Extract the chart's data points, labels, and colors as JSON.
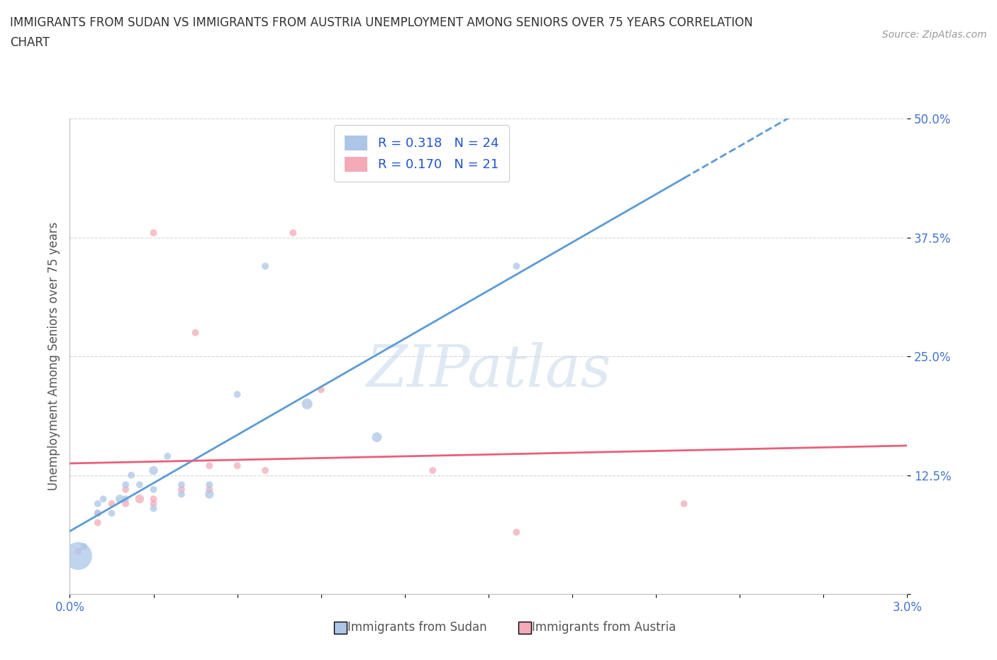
{
  "title_line1": "IMMIGRANTS FROM SUDAN VS IMMIGRANTS FROM AUSTRIA UNEMPLOYMENT AMONG SENIORS OVER 75 YEARS CORRELATION",
  "title_line2": "CHART",
  "source": "Source: ZipAtlas.com",
  "ylabel": "Unemployment Among Seniors over 75 years",
  "xlim": [
    0.0,
    0.03
  ],
  "ylim": [
    0.0,
    0.5
  ],
  "xticks": [
    0.0,
    0.003,
    0.006,
    0.009,
    0.012,
    0.015,
    0.018,
    0.021,
    0.024,
    0.027,
    0.03
  ],
  "xtick_labels_show": [
    "0.0%",
    "3.0%"
  ],
  "yticks": [
    0.0,
    0.125,
    0.25,
    0.375,
    0.5
  ],
  "ytick_labels": [
    "",
    "12.5%",
    "25.0%",
    "37.5%",
    "50.0%"
  ],
  "sudan_color": "#adc6e8",
  "austria_color": "#f5aab8",
  "sudan_line_color": "#5b9bd5",
  "austria_line_color": "#e8607a",
  "watermark_text": "ZIPatlas",
  "sudan_x": [
    0.0003,
    0.0005,
    0.001,
    0.001,
    0.0012,
    0.0015,
    0.0018,
    0.002,
    0.002,
    0.0022,
    0.0025,
    0.003,
    0.003,
    0.003,
    0.0035,
    0.004,
    0.004,
    0.005,
    0.005,
    0.006,
    0.007,
    0.0085,
    0.011,
    0.016
  ],
  "sudan_y": [
    0.04,
    0.05,
    0.085,
    0.095,
    0.1,
    0.085,
    0.1,
    0.1,
    0.115,
    0.125,
    0.115,
    0.09,
    0.11,
    0.13,
    0.145,
    0.105,
    0.115,
    0.105,
    0.115,
    0.21,
    0.345,
    0.2,
    0.165,
    0.345
  ],
  "sudan_sizes": [
    800,
    50,
    50,
    50,
    50,
    50,
    80,
    50,
    50,
    50,
    50,
    50,
    50,
    80,
    50,
    50,
    50,
    80,
    50,
    50,
    50,
    120,
    100,
    50
  ],
  "austria_x": [
    0.0003,
    0.001,
    0.001,
    0.0015,
    0.002,
    0.002,
    0.0025,
    0.003,
    0.003,
    0.003,
    0.004,
    0.0045,
    0.005,
    0.005,
    0.006,
    0.007,
    0.008,
    0.009,
    0.013,
    0.016,
    0.022
  ],
  "austria_y": [
    0.045,
    0.075,
    0.085,
    0.095,
    0.095,
    0.11,
    0.1,
    0.095,
    0.1,
    0.38,
    0.11,
    0.275,
    0.11,
    0.135,
    0.135,
    0.13,
    0.38,
    0.215,
    0.13,
    0.065,
    0.095
  ],
  "austria_sizes": [
    50,
    50,
    50,
    50,
    50,
    50,
    80,
    50,
    50,
    50,
    50,
    50,
    50,
    50,
    50,
    50,
    50,
    50,
    50,
    50,
    50
  ],
  "background_color": "#ffffff",
  "grid_color": "#d8d8d8",
  "title_color": "#333333",
  "axis_label_color": "#555555",
  "tick_color": "#4477cc",
  "legend_label_color": "#2255cc"
}
